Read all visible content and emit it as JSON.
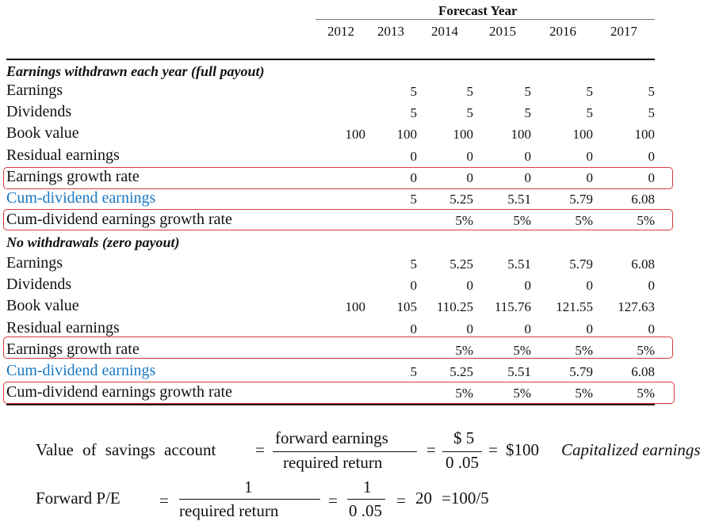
{
  "header": {
    "title": "Forecast Year",
    "years": [
      "2012",
      "2013",
      "2014",
      "2015",
      "2016",
      "2017"
    ]
  },
  "sections": [
    {
      "title": "Earnings withdrawn each year (full payout)",
      "rows": [
        {
          "label": "Earnings",
          "values": [
            "",
            "5",
            "5",
            "5",
            "5",
            "5"
          ]
        },
        {
          "label": "Dividends",
          "values": [
            "",
            "5",
            "5",
            "5",
            "5",
            "5"
          ]
        },
        {
          "label": "Book value",
          "values": [
            "100",
            "100",
            "100",
            "100",
            "100",
            "100"
          ]
        },
        {
          "label": "Residual earnings",
          "values": [
            "",
            "0",
            "0",
            "0",
            "0",
            "0"
          ]
        },
        {
          "label": "Earnings growth rate",
          "values": [
            "",
            "0",
            "0",
            "0",
            "0",
            "0"
          ]
        },
        {
          "label": "Cum-dividend earnings",
          "values": [
            "",
            "5",
            "5.25",
            "5.51",
            "5.79",
            "6.08"
          ]
        },
        {
          "label": "Cum-dividend earnings growth rate",
          "values": [
            "",
            "",
            "5%",
            "5%",
            "5%",
            "5%"
          ]
        }
      ]
    },
    {
      "title": "No withdrawals (zero payout)",
      "rows": [
        {
          "label": "Earnings",
          "values": [
            "",
            "5",
            "5.25",
            "5.51",
            "5.79",
            "6.08"
          ]
        },
        {
          "label": "Dividends",
          "values": [
            "",
            "0",
            "0",
            "0",
            "0",
            "0"
          ]
        },
        {
          "label": "Book value",
          "values": [
            "100",
            "105",
            "110.25",
            "115.76",
            "121.55",
            "127.63"
          ]
        },
        {
          "label": "Residual earnings",
          "values": [
            "",
            "0",
            "0",
            "0",
            "0",
            "0"
          ]
        },
        {
          "label": "Earnings growth rate",
          "values": [
            "",
            "",
            "5%",
            "5%",
            "5%",
            "5%"
          ]
        },
        {
          "label": "Cum-dividend earnings",
          "values": [
            "",
            "5",
            "5.25",
            "5.51",
            "5.79",
            "6.08"
          ]
        },
        {
          "label": "Cum-dividend earnings growth rate",
          "values": [
            "",
            "",
            "5%",
            "5%",
            "5%",
            "5%"
          ]
        }
      ]
    }
  ],
  "formulas": {
    "savings": {
      "lhs": "Value   of  savings   account",
      "eq1": "=",
      "num": "forward   earnings",
      "den": "required   return",
      "eq2": "=",
      "num2": "$ 5",
      "den2": "0 .05",
      "eq3": "=",
      "result": "$100",
      "caption": "Capitalized earnings"
    },
    "pe": {
      "lhs": "Forward      P/E",
      "eq1": "=",
      "num": "1",
      "den": "required       return",
      "eq2": "=",
      "num2": "1",
      "den2": "0 .05",
      "eq3": "=",
      "result": "20",
      "tail": "=100/5"
    }
  },
  "colors": {
    "blue_label": "#1a78c2",
    "highlight_box": "#d83a3a"
  }
}
